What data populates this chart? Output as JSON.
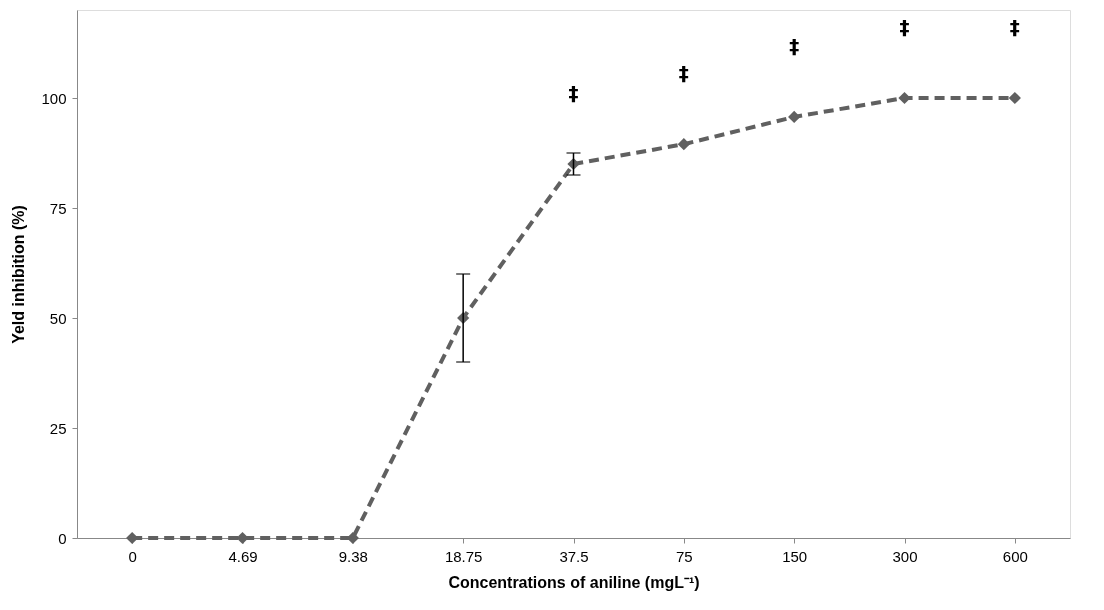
{
  "chart_data": {
    "type": "line",
    "xlabel": "Concentrations of aniline  (mgL⁻¹)",
    "ylabel": "Yeld inhibition (%)",
    "categories": [
      "0",
      "4.69",
      "9.38",
      "18.75",
      "37.5",
      "75",
      "150",
      "300",
      "600"
    ],
    "series": [
      {
        "color": "#606060",
        "values": [
          0,
          0,
          0,
          50,
          85,
          89.5,
          95.7,
          100,
          100
        ],
        "errors": [
          null,
          null,
          null,
          10,
          2.5,
          null,
          null,
          null,
          null
        ]
      }
    ],
    "ylim": [
      0,
      120
    ],
    "yticks": [
      0,
      25,
      50,
      75,
      100
    ],
    "grid": false,
    "marker": "diamond",
    "line_style": "dashed",
    "annotations": [
      "‡",
      "‡",
      "‡",
      "‡",
      "‡"
    ]
  }
}
